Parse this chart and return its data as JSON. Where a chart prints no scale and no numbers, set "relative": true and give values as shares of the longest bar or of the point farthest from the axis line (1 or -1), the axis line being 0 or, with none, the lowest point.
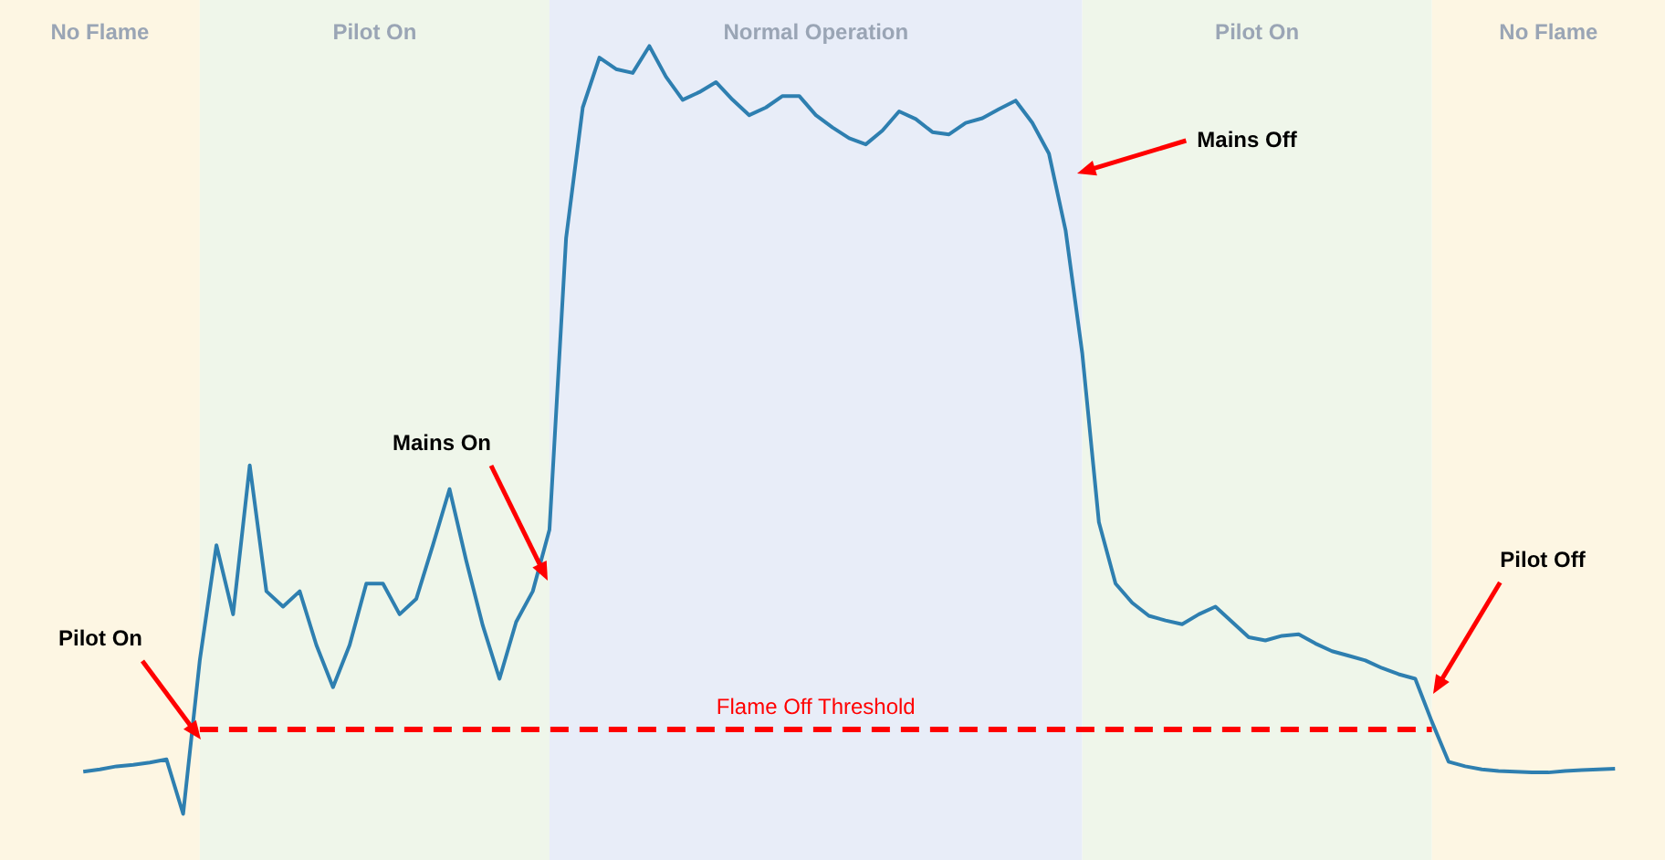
{
  "chart_data": {
    "type": "line",
    "relative": true,
    "legend": false,
    "marker": "none",
    "line_style": "solid",
    "categories": [
      null,
      null,
      null,
      null,
      null,
      null,
      null,
      null,
      null,
      null,
      null,
      null,
      null,
      null,
      null,
      null,
      null,
      null,
      null,
      null,
      null,
      null,
      null,
      null,
      null,
      null,
      null,
      null,
      null,
      null,
      null,
      null,
      null,
      null,
      null,
      null,
      null,
      null,
      null,
      null,
      null,
      null,
      null,
      null,
      null,
      null,
      null,
      null,
      null,
      null,
      null,
      null,
      null,
      null,
      null,
      null,
      null,
      null,
      null,
      null,
      null,
      null,
      null,
      null,
      null,
      null,
      null,
      null,
      null,
      null,
      null,
      null,
      null,
      null,
      null,
      null,
      null,
      null,
      null,
      null,
      null,
      null,
      null,
      null,
      null,
      null,
      null,
      null,
      null,
      null,
      null,
      null,
      null,
      null,
      null,
      null,
      null,
      null,
      null,
      null,
      null
    ],
    "series": [
      {
        "color": "#2e7fb0",
        "values": [
          null,
          null,
          null,
          null,
          null,
          0.055,
          0.058,
          0.062,
          0.064,
          0.067,
          0.071,
          0,
          0.2,
          0.35,
          0.26,
          0.454,
          0.29,
          0.27,
          0.29,
          0.22,
          0.165,
          0.22,
          0.3,
          0.3,
          0.26,
          0.28,
          0.35,
          0.423,
          0.33,
          0.245,
          0.176,
          0.25,
          0.29,
          0.37,
          0.75,
          0.92,
          0.985,
          0.97,
          0.965,
          1,
          0.96,
          0.93,
          0.94,
          0.953,
          0.93,
          0.91,
          0.92,
          0.935,
          0.935,
          0.91,
          0.894,
          0.88,
          0.872,
          0.89,
          0.915,
          0.905,
          0.888,
          0.885,
          0.9,
          0.906,
          0.918,
          0.929,
          0.9,
          0.86,
          0.76,
          0.6,
          0.38,
          0.3,
          0.275,
          0.258,
          0.252,
          0.247,
          0.26,
          0.27,
          0.25,
          0.23,
          0.226,
          0.232,
          0.234,
          0.222,
          0.212,
          0.206,
          0.2,
          0.19,
          0.182,
          0.176,
          0.12,
          0.068,
          0.062,
          0.058,
          0.056,
          0.055,
          0.054,
          0.054,
          0.056,
          0.057,
          0.058,
          0.059,
          null,
          null,
          null
        ]
      }
    ],
    "ref_lines": [
      {
        "axis": "y",
        "value": 0.11,
        "label": "Flame Off Threshold",
        "color": "#ff0000",
        "line_style": "dashed"
      }
    ],
    "annotations": [
      "No Flame",
      "Pilot On",
      "Normal Operation",
      "Pilot On",
      "No Flame",
      "Pilot On",
      "Mains On",
      "Mains Off",
      "Pilot Off"
    ]
  }
}
